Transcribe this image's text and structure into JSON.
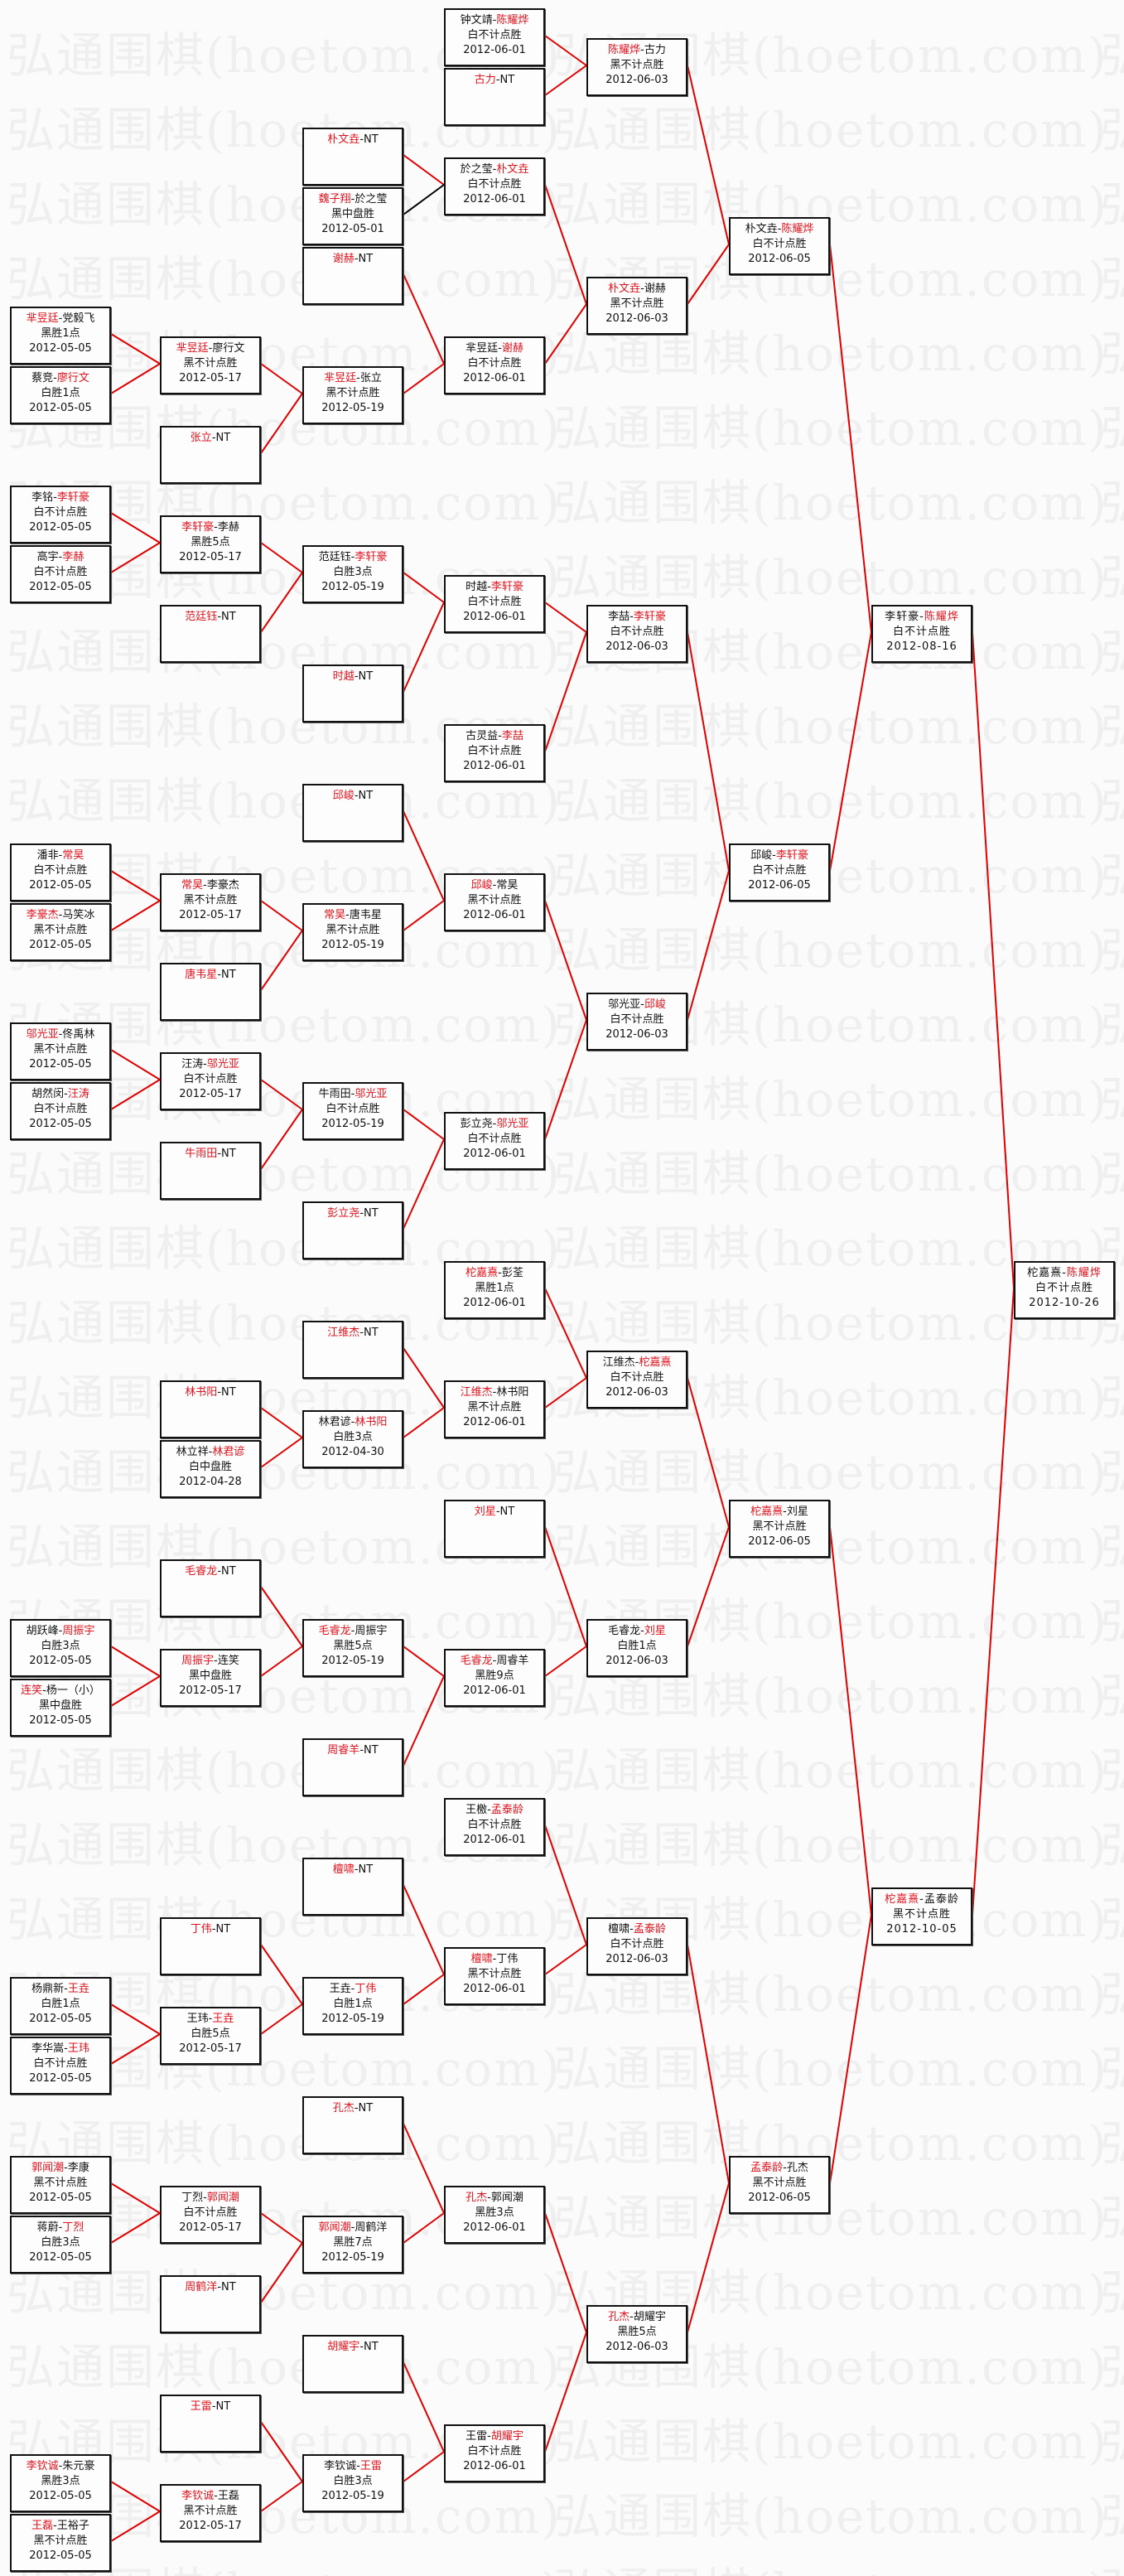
{
  "watermark": "弘通围棋(hoetom.com)",
  "colors": {
    "winner": "#e0141e",
    "line": "#e00000",
    "box_border": "#111111"
  },
  "bracket": {
    "rounds": [
      {
        "matches": [
          {
            "a": "芈昱廷",
            "b": "党毅飞",
            "winner": "a",
            "result": "黑胜1点",
            "date": "2012-05-05"
          },
          {
            "a": "蔡竞",
            "b": "廖行文",
            "winner": "b",
            "result": "白胜1点",
            "date": "2012-05-05"
          },
          {
            "a": "李铭",
            "b": "李轩豪",
            "winner": "b",
            "result": "白不计点胜",
            "date": "2012-05-05"
          },
          {
            "a": "高宇",
            "b": "李赫",
            "winner": "b",
            "result": "白不计点胜",
            "date": "2012-05-05"
          },
          {
            "a": "潘非",
            "b": "常昊",
            "winner": "b",
            "result": "白不计点胜",
            "date": "2012-05-05"
          },
          {
            "a": "李豪杰",
            "b": "马笑冰",
            "winner": "a",
            "result": "黑不计点胜",
            "date": "2012-05-05"
          },
          {
            "a": "邬光亚",
            "b": "佟禹林",
            "winner": "a",
            "result": "黑不计点胜",
            "date": "2012-05-05"
          },
          {
            "a": "胡然闵",
            "b": "汪涛",
            "winner": "b",
            "result": "白不计点胜",
            "date": "2012-05-05"
          },
          {
            "a": "胡跃峰",
            "b": "周振宇",
            "winner": "b",
            "result": "白胜3点",
            "date": "2012-05-05"
          },
          {
            "a": "连笑",
            "b": "杨一（小）",
            "winner": "a",
            "result": "黑中盘胜",
            "date": "2012-05-05"
          },
          {
            "a": "杨鼎新",
            "b": "王垚",
            "winner": "b",
            "result": "白胜1点",
            "date": "2012-05-05"
          },
          {
            "a": "李华嵩",
            "b": "王玮",
            "winner": "b",
            "result": "白不计点胜",
            "date": "2012-05-05"
          },
          {
            "a": "郭闻潮",
            "b": "李康",
            "winner": "a",
            "result": "黑不计点胜",
            "date": "2012-05-05"
          },
          {
            "a": "蒋蔚",
            "b": "丁烈",
            "winner": "b",
            "result": "白胜3点",
            "date": "2012-05-05"
          },
          {
            "a": "李钦诚",
            "b": "朱元豪",
            "winner": "a",
            "result": "黑胜3点",
            "date": "2012-05-05"
          },
          {
            "a": "王磊",
            "b": "王裕子",
            "winner": "a",
            "result": "黑不计点胜",
            "date": "2012-05-05"
          }
        ]
      },
      {
        "matches": [
          {
            "a": "芈昱廷",
            "b": "廖行文",
            "winner": "a",
            "result": "黑不计点胜",
            "date": "2012-05-17"
          },
          {
            "a": "张立",
            "b": "NT",
            "winner": "a"
          },
          {
            "a": "李轩豪",
            "b": "李赫",
            "winner": "a",
            "result": "黑胜5点",
            "date": "2012-05-17"
          },
          {
            "a": "范廷钰",
            "b": "NT",
            "winner": "a"
          },
          {
            "a": "常昊",
            "b": "李豪杰",
            "winner": "a",
            "result": "黑不计点胜",
            "date": "2012-05-17"
          },
          {
            "a": "唐韦星",
            "b": "NT",
            "winner": "a"
          },
          {
            "a": "汪涛",
            "b": "邬光亚",
            "winner": "b",
            "result": "白不计点胜",
            "date": "2012-05-17"
          },
          {
            "a": "牛雨田",
            "b": "NT",
            "winner": "a"
          },
          {
            "a": "林书阳",
            "b": "NT",
            "winner": "a"
          },
          {
            "a": "林立祥",
            "b": "林君谚",
            "winner": "b",
            "result": "白中盘胜",
            "date": "2012-04-28"
          },
          {
            "a": "毛睿龙",
            "b": "NT",
            "winner": "a"
          },
          {
            "a": "周振宇",
            "b": "连笑",
            "winner": "a",
            "result": "黑中盘胜",
            "date": "2012-05-17"
          },
          {
            "a": "丁伟",
            "b": "NT",
            "winner": "a"
          },
          {
            "a": "王玮",
            "b": "王垚",
            "winner": "b",
            "result": "白胜5点",
            "date": "2012-05-17"
          },
          {
            "a": "丁烈",
            "b": "郭闻潮",
            "winner": "b",
            "result": "白不计点胜",
            "date": "2012-05-17"
          },
          {
            "a": "周鹤洋",
            "b": "NT",
            "winner": "a"
          },
          {
            "a": "王雷",
            "b": "NT",
            "winner": "a"
          },
          {
            "a": "李钦诚",
            "b": "王磊",
            "winner": "a",
            "result": "黑不计点胜",
            "date": "2012-05-17"
          }
        ]
      },
      {
        "matches": [
          {
            "a": "朴文垚",
            "b": "NT",
            "winner": "a"
          },
          {
            "a": "魏子翔",
            "b": "於之莹",
            "winner": "a",
            "result": "黑中盘胜",
            "date": "2012-05-01"
          },
          {
            "a": "谢赫",
            "b": "NT",
            "winner": "a"
          },
          {
            "a": "芈昱廷",
            "b": "张立",
            "winner": "a",
            "result": "黑不计点胜",
            "date": "2012-05-19"
          },
          {
            "a": "范廷钰",
            "b": "李轩豪",
            "winner": "b",
            "result": "白胜3点",
            "date": "2012-05-19"
          },
          {
            "a": "时越",
            "b": "NT",
            "winner": "a"
          },
          {
            "a": "邱峻",
            "b": "NT",
            "winner": "a"
          },
          {
            "a": "常昊",
            "b": "唐韦星",
            "winner": "a",
            "result": "黑不计点胜",
            "date": "2012-05-19"
          },
          {
            "a": "牛雨田",
            "b": "邬光亚",
            "winner": "b",
            "result": "白不计点胜",
            "date": "2012-05-19"
          },
          {
            "a": "彭立尧",
            "b": "NT",
            "winner": "a"
          },
          {
            "a": "江维杰",
            "b": "NT",
            "winner": "a"
          },
          {
            "a": "林君谚",
            "b": "林书阳",
            "winner": "b",
            "result": "白胜3点",
            "date": "2012-04-30"
          },
          {
            "a": "毛睿龙",
            "b": "周振宇",
            "winner": "a",
            "result": "黑胜5点",
            "date": "2012-05-19"
          },
          {
            "a": "周睿羊",
            "b": "NT",
            "winner": "a"
          },
          {
            "a": "檀啸",
            "b": "NT",
            "winner": "a"
          },
          {
            "a": "王垚",
            "b": "丁伟",
            "winner": "b",
            "result": "白胜1点",
            "date": "2012-05-19"
          },
          {
            "a": "孔杰",
            "b": "NT",
            "winner": "a"
          },
          {
            "a": "郭闻潮",
            "b": "周鹤洋",
            "winner": "a",
            "result": "黑胜7点",
            "date": "2012-05-19"
          },
          {
            "a": "胡耀宇",
            "b": "NT",
            "winner": "a"
          },
          {
            "a": "李钦诚",
            "b": "王雷",
            "winner": "b",
            "result": "白胜3点",
            "date": "2012-05-19"
          }
        ]
      },
      {
        "matches": [
          {
            "a": "钟文靖",
            "b": "陈耀烨",
            "winner": "b",
            "result": "白不计点胜",
            "date": "2012-06-01"
          },
          {
            "a": "古力",
            "b": "NT",
            "winner": "a"
          },
          {
            "a": "於之莹",
            "b": "朴文垚",
            "winner": "b",
            "result": "白不计点胜",
            "date": "2012-06-01"
          },
          {
            "a": "芈昱廷",
            "b": "谢赫",
            "winner": "b",
            "result": "白不计点胜",
            "date": "2012-06-01"
          },
          {
            "a": "时越",
            "b": "李轩豪",
            "winner": "b",
            "result": "白不计点胜",
            "date": "2012-06-01"
          },
          {
            "a": "古灵益",
            "b": "李喆",
            "winner": "b",
            "result": "白不计点胜",
            "date": "2012-06-01"
          },
          {
            "a": "邱峻",
            "b": "常昊",
            "winner": "a",
            "result": "黑不计点胜",
            "date": "2012-06-01"
          },
          {
            "a": "彭立尧",
            "b": "邬光亚",
            "winner": "b",
            "result": "白不计点胜",
            "date": "2012-06-01"
          },
          {
            "a": "柁嘉熹",
            "b": "彭荃",
            "winner": "a",
            "result": "黑胜1点",
            "date": "2012-06-01"
          },
          {
            "a": "江维杰",
            "b": "林书阳",
            "winner": "a",
            "result": "黑不计点胜",
            "date": "2012-06-01"
          },
          {
            "a": "刘星",
            "b": "NT",
            "winner": "a"
          },
          {
            "a": "毛睿龙",
            "b": "周睿羊",
            "winner": "a",
            "result": "黑胜9点",
            "date": "2012-06-01"
          },
          {
            "a": "王檄",
            "b": "孟泰龄",
            "winner": "b",
            "result": "白不计点胜",
            "date": "2012-06-01"
          },
          {
            "a": "檀啸",
            "b": "丁伟",
            "winner": "a",
            "result": "黑不计点胜",
            "date": "2012-06-01"
          },
          {
            "a": "孔杰",
            "b": "郭闻潮",
            "winner": "a",
            "result": "黑胜3点",
            "date": "2012-06-01"
          },
          {
            "a": "王雷",
            "b": "胡耀宇",
            "winner": "b",
            "result": "白不计点胜",
            "date": "2012-06-01"
          }
        ]
      },
      {
        "matches": [
          {
            "a": "陈耀烨",
            "b": "古力",
            "winner": "a",
            "result": "黑不计点胜",
            "date": "2012-06-03"
          },
          {
            "a": "朴文垚",
            "b": "谢赫",
            "winner": "a",
            "result": "黑不计点胜",
            "date": "2012-06-03"
          },
          {
            "a": "李喆",
            "b": "李轩豪",
            "winner": "b",
            "result": "白不计点胜",
            "date": "2012-06-03"
          },
          {
            "a": "邬光亚",
            "b": "邱峻",
            "winner": "b",
            "result": "白不计点胜",
            "date": "2012-06-03"
          },
          {
            "a": "江维杰",
            "b": "柁嘉熹",
            "winner": "b",
            "result": "白不计点胜",
            "date": "2012-06-03"
          },
          {
            "a": "毛睿龙",
            "b": "刘星",
            "winner": "b",
            "result": "白胜1点",
            "date": "2012-06-03"
          },
          {
            "a": "檀啸",
            "b": "孟泰龄",
            "winner": "b",
            "result": "白不计点胜",
            "date": "2012-06-03"
          },
          {
            "a": "孔杰",
            "b": "胡耀宇",
            "winner": "a",
            "result": "黑胜5点",
            "date": "2012-06-03"
          }
        ]
      },
      {
        "matches": [
          {
            "a": "朴文垚",
            "b": "陈耀烨",
            "winner": "b",
            "result": "白不计点胜",
            "date": "2012-06-05"
          },
          {
            "a": "邱峻",
            "b": "李轩豪",
            "winner": "b",
            "result": "白不计点胜",
            "date": "2012-06-05"
          },
          {
            "a": "柁嘉熹",
            "b": "刘星",
            "winner": "a",
            "result": "黑不计点胜",
            "date": "2012-06-05"
          },
          {
            "a": "孟泰龄",
            "b": "孔杰",
            "winner": "a",
            "result": "黑不计点胜",
            "date": "2012-06-05"
          }
        ]
      },
      {
        "matches": [
          {
            "a": "李轩豪",
            "b": "陈耀烨",
            "winner": "b",
            "result": "白不计点胜",
            "date": "2012-08-16"
          },
          {
            "a": "柁嘉熹",
            "b": "孟泰龄",
            "winner": "a",
            "result": "黑不计点胜",
            "date": "2012-10-05"
          }
        ]
      },
      {
        "matches": [
          {
            "a": "柁嘉熹",
            "b": "陈耀烨",
            "winner": "b",
            "result": "白不计点胜",
            "date": "2012-10-26"
          }
        ]
      }
    ]
  }
}
